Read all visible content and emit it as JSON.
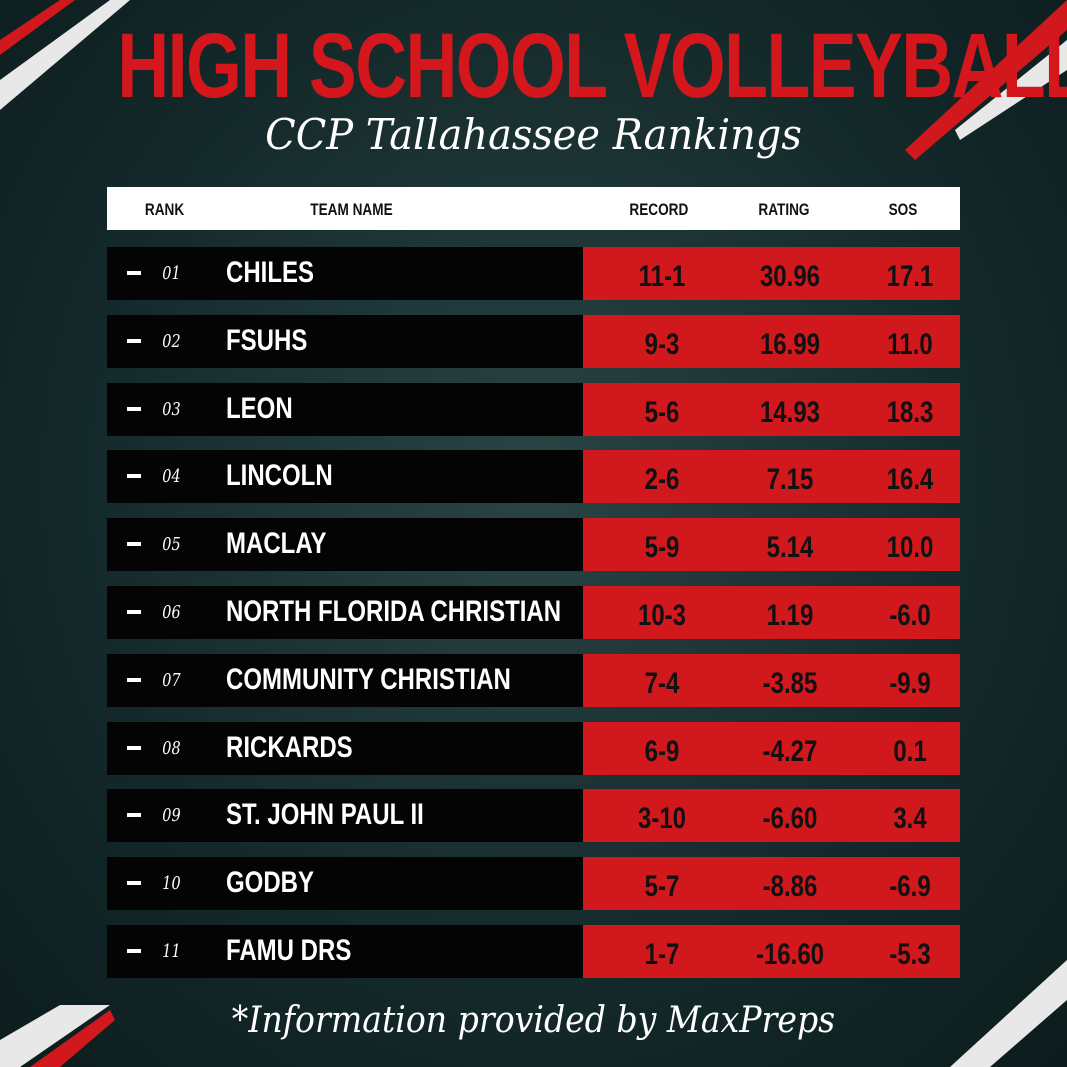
{
  "header": {
    "title": "HIGH SCHOOL VOLLEYBALL",
    "subtitle": "CCP Tallahassee Rankings"
  },
  "table": {
    "columns": [
      "RANK",
      "TEAM NAME",
      "RECORD",
      "RATING",
      "SOS"
    ],
    "rows": [
      [
        "01",
        "CHILES",
        "11-1",
        "30.96",
        "17.1"
      ],
      [
        "02",
        "FSUHS",
        "9-3",
        "16.99",
        "11.0"
      ],
      [
        "03",
        "LEON",
        "5-6",
        "14.93",
        "18.3"
      ],
      [
        "04",
        "LINCOLN",
        "2-6",
        "7.15",
        "16.4"
      ],
      [
        "05",
        "MACLAY",
        "5-9",
        "5.14",
        "10.0"
      ],
      [
        "06",
        "NORTH FLORIDA CHRISTIAN",
        "10-3",
        "1.19",
        "-6.0"
      ],
      [
        "07",
        "COMMUNITY CHRISTIAN",
        "7-4",
        "-3.85",
        "-9.9"
      ],
      [
        "08",
        "RICKARDS",
        "6-9",
        "-4.27",
        "0.1"
      ],
      [
        "09",
        "ST. JOHN PAUL II",
        "3-10",
        "-6.60",
        "3.4"
      ],
      [
        "10",
        "GODBY",
        "5-7",
        "-8.86",
        "-6.9"
      ],
      [
        "11",
        "FAMU DRS",
        "1-7",
        "-16.60",
        "-5.3"
      ]
    ]
  },
  "footer": "*Information provided by MaxPreps"
}
